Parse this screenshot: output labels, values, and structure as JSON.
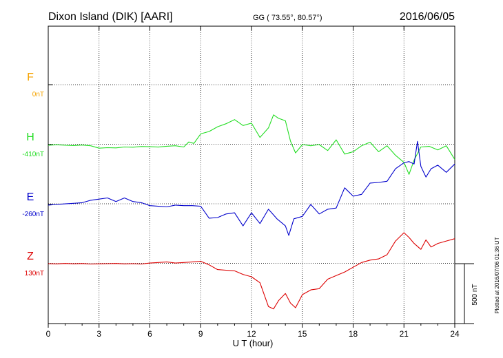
{
  "header": {
    "title": "Dixon Island (DIK)  [AARI]",
    "coords": "GG ( 73.55°,  80.57°)",
    "date": "2016/06/05"
  },
  "side_note": "Plotted at 2016/07/06 01:36 UT",
  "scale_label": "500 nT",
  "chart_data": {
    "type": "line",
    "xlabel": "U T (hour)",
    "xlim": [
      0,
      24
    ],
    "xticks": [
      "0",
      "3",
      "6",
      "9",
      "12",
      "15",
      "18",
      "21",
      "24"
    ],
    "grid": true,
    "scale_bar_nT": 500,
    "colors": {
      "F": "#f5a300",
      "H": "#22dd22",
      "E": "#0000cc",
      "Z": "#dd0000"
    },
    "series": [
      {
        "name": "F",
        "baseline_label": "0nT",
        "x": [],
        "y": []
      },
      {
        "name": "H",
        "baseline_label": "-410nT",
        "x": [
          0,
          0.5,
          1,
          1.5,
          2,
          2.5,
          3,
          3.5,
          4,
          4.5,
          5,
          5.5,
          6,
          6.5,
          7,
          7.5,
          8,
          8.3,
          8.6,
          9,
          9.5,
          10,
          10.5,
          11,
          11.5,
          12,
          12.5,
          13,
          13.3,
          13.6,
          14,
          14.3,
          14.6,
          15,
          15.5,
          16,
          16.5,
          17,
          17.5,
          18,
          18.5,
          19,
          19.5,
          20,
          20.5,
          21,
          21.3,
          21.6,
          22,
          22.5,
          23,
          23.5,
          24
        ],
        "y": [
          -415,
          -412,
          -416,
          -418,
          -414,
          -420,
          -440,
          -436,
          -438,
          -430,
          -432,
          -426,
          -428,
          -431,
          -424,
          -420,
          -430,
          -388,
          -400,
          -320,
          -300,
          -260,
          -235,
          -200,
          -250,
          -230,
          -350,
          -270,
          -160,
          -190,
          -210,
          -380,
          -480,
          -410,
          -420,
          -410,
          -460,
          -370,
          -490,
          -470,
          -420,
          -390,
          -470,
          -420,
          -500,
          -560,
          -660,
          -540,
          -430,
          -425,
          -455,
          -420,
          -535
        ]
      },
      {
        "name": "E",
        "baseline_label": "-260nT",
        "x": [
          0,
          0.5,
          1,
          1.5,
          2,
          2.5,
          3,
          3.5,
          4,
          4.5,
          5,
          5.5,
          6,
          6.5,
          7,
          7.5,
          8,
          8.5,
          9,
          9.5,
          10,
          10.5,
          11,
          11.5,
          12,
          12.5,
          13,
          13.5,
          14,
          14.2,
          14.5,
          15,
          15.5,
          16,
          16.5,
          17,
          17.5,
          18,
          18.5,
          19,
          19.5,
          20,
          20.5,
          21,
          21.3,
          21.6,
          21.8,
          22,
          22.3,
          22.6,
          23,
          23.5,
          24
        ],
        "y": [
          -265,
          -260,
          -255,
          -250,
          -245,
          -225,
          -215,
          -205,
          -235,
          -205,
          -235,
          -245,
          -270,
          -275,
          -280,
          -265,
          -270,
          -270,
          -275,
          -375,
          -370,
          -340,
          -330,
          -440,
          -330,
          -420,
          -300,
          -380,
          -440,
          -520,
          -380,
          -360,
          -260,
          -340,
          -300,
          -290,
          -120,
          -190,
          -175,
          -80,
          -75,
          -65,
          40,
          90,
          100,
          80,
          270,
          60,
          -30,
          40,
          70,
          10,
          80
        ]
      },
      {
        "name": "Z",
        "baseline_label": "130nT",
        "x": [
          0,
          0.5,
          1,
          1.5,
          2,
          2.5,
          3,
          3.5,
          4,
          4.5,
          5,
          5.5,
          6,
          6.5,
          7,
          7.5,
          8,
          8.5,
          9,
          9.5,
          10,
          10.5,
          11,
          11.5,
          12,
          12.5,
          13,
          13.3,
          13.6,
          14,
          14.3,
          14.6,
          15,
          15.5,
          16,
          16.5,
          17,
          17.5,
          18,
          18.5,
          19,
          19.5,
          20,
          20.5,
          21,
          21.3,
          21.6,
          22,
          22.3,
          22.6,
          23,
          23.5,
          24
        ],
        "y": [
          130,
          128,
          132,
          129,
          131,
          127,
          129,
          130,
          132,
          128,
          130,
          127,
          135,
          140,
          145,
          135,
          140,
          145,
          150,
          120,
          80,
          75,
          70,
          40,
          20,
          -30,
          -230,
          -250,
          -180,
          -120,
          -200,
          -240,
          -130,
          -90,
          -80,
          0,
          30,
          60,
          100,
          140,
          160,
          170,
          205,
          320,
          390,
          350,
          300,
          250,
          330,
          270,
          300,
          320,
          340
        ]
      }
    ]
  }
}
